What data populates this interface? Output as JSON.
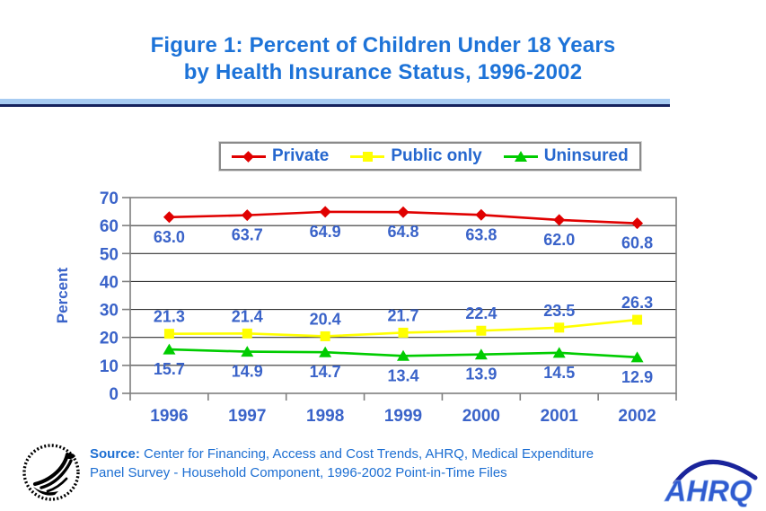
{
  "title": {
    "line1": "Figure 1: Percent of Children Under 18 Years",
    "line2": "by Health Insurance Status, 1996-2002"
  },
  "chart_data": {
    "type": "line",
    "categories": [
      "1996",
      "1997",
      "1998",
      "1999",
      "2000",
      "2001",
      "2002"
    ],
    "series": [
      {
        "name": "Private",
        "marker": "diamond",
        "color": "#e00000",
        "values": [
          63.0,
          63.7,
          64.9,
          64.8,
          63.8,
          62.0,
          60.8
        ],
        "label_position": "below"
      },
      {
        "name": "Public only",
        "marker": "square",
        "color": "#ffff00",
        "values": [
          21.3,
          21.4,
          20.4,
          21.7,
          22.4,
          23.5,
          26.3
        ],
        "label_position": "above"
      },
      {
        "name": "Uninsured",
        "marker": "triangle",
        "color": "#00cc00",
        "values": [
          15.7,
          14.9,
          14.7,
          13.4,
          13.9,
          14.5,
          12.9
        ],
        "label_position": "below"
      }
    ],
    "xlabel": "",
    "ylabel": "Percent",
    "ylim": [
      0,
      70
    ],
    "yticks": [
      0,
      10,
      20,
      30,
      40,
      50,
      60,
      70
    ],
    "grid": true,
    "legend_position": "top"
  },
  "source": {
    "label": "Source:",
    "line1": "Center for Financing, Access and Cost Trends, AHRQ, Medical Expenditure",
    "line2": "Panel Survey - Household Component, 1996-2002 Point-in-Time Files"
  },
  "logos": {
    "ahrq_text": "AHRQ"
  },
  "colors": {
    "title_text": "#1d73d8",
    "axis_label_text": "#3a63c9",
    "legend_text": "#2667ce",
    "source_text": "#1c6ed2",
    "grid_line": "#333333",
    "axis_line": "#7f7f7f",
    "divider_light": "#a7cbf2",
    "divider_dark": "#16235e",
    "logo_arc": "#1a249b",
    "logo_text": "#2f5bd0"
  }
}
